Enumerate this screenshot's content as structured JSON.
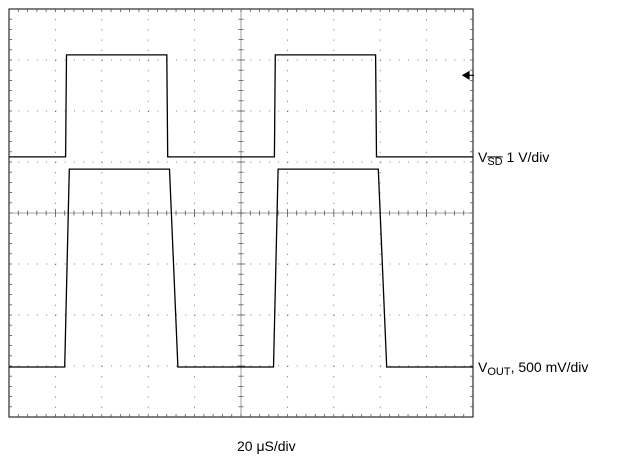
{
  "chart_data": {
    "type": "line",
    "title": "",
    "grid": true,
    "x_divisions": 10,
    "y_divisions": 8,
    "xlabel": "20 μS/div",
    "series": [
      {
        "name": "V_SD",
        "label_main": "V",
        "label_sub": "SD",
        "label_rest": " 1 V/div",
        "overline_sub": true,
        "color": "#000000",
        "x_div": [
          0,
          1.22,
          1.24,
          3.4,
          3.42,
          5.72,
          5.74,
          7.9,
          7.92,
          10
        ],
        "y_div": [
          5.1,
          5.1,
          7.1,
          7.1,
          5.1,
          5.1,
          7.1,
          7.1,
          5.1,
          5.1
        ]
      },
      {
        "name": "V_OUT",
        "label_main": "V",
        "label_sub": "OUT",
        "label_rest": ", 500 mV/div",
        "overline_sub": false,
        "color": "#000000",
        "x_div": [
          0,
          1.2,
          1.3,
          3.46,
          3.64,
          5.7,
          5.8,
          7.96,
          8.14,
          10
        ],
        "y_div": [
          0.98,
          0.98,
          4.86,
          4.86,
          0.98,
          0.98,
          4.86,
          4.86,
          0.98,
          0.98
        ]
      }
    ],
    "marker": {
      "icon": "arrow-left-icon",
      "y_div": 6.7
    }
  }
}
